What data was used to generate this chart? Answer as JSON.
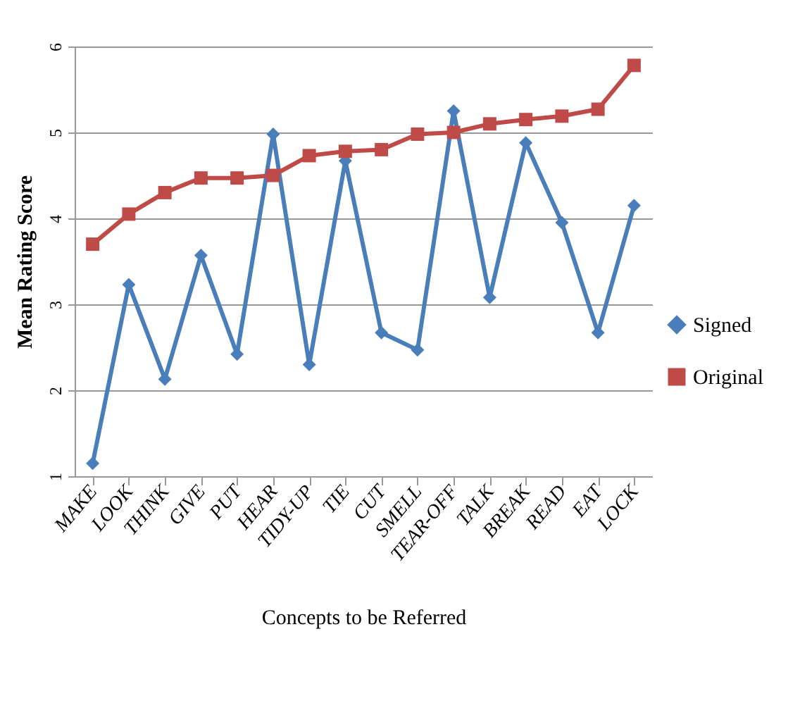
{
  "chart_data": {
    "type": "line",
    "xlabel": "Concepts to be Referred",
    "ylabel": "Mean Rating Score",
    "categories": [
      "MAKE",
      "LOOK",
      "THINK",
      "GIVE",
      "PUT",
      "HEAR",
      "TIDY-UP",
      "TIE",
      "CUT",
      "SMELL",
      "TEAR-OFF",
      "TALK",
      "BREAK",
      "READ",
      "EAT",
      "LOCK"
    ],
    "series": [
      {
        "name": "Signed",
        "color": "#4a7ebb",
        "marker": "diamond",
        "values": [
          1.15,
          3.23,
          2.13,
          3.57,
          2.42,
          4.98,
          2.3,
          4.67,
          2.67,
          2.47,
          5.25,
          3.08,
          4.88,
          3.95,
          2.67,
          4.15
        ]
      },
      {
        "name": "Original",
        "color": "#be4b48",
        "marker": "square",
        "values": [
          3.7,
          4.05,
          4.3,
          4.47,
          4.47,
          4.5,
          4.73,
          4.78,
          4.8,
          4.98,
          5.0,
          5.1,
          5.15,
          5.19,
          5.27,
          5.78
        ]
      }
    ],
    "ylim": [
      1,
      6
    ],
    "yticks": [
      1,
      2,
      3,
      4,
      5,
      6
    ],
    "grid": "y",
    "legend": "right"
  }
}
